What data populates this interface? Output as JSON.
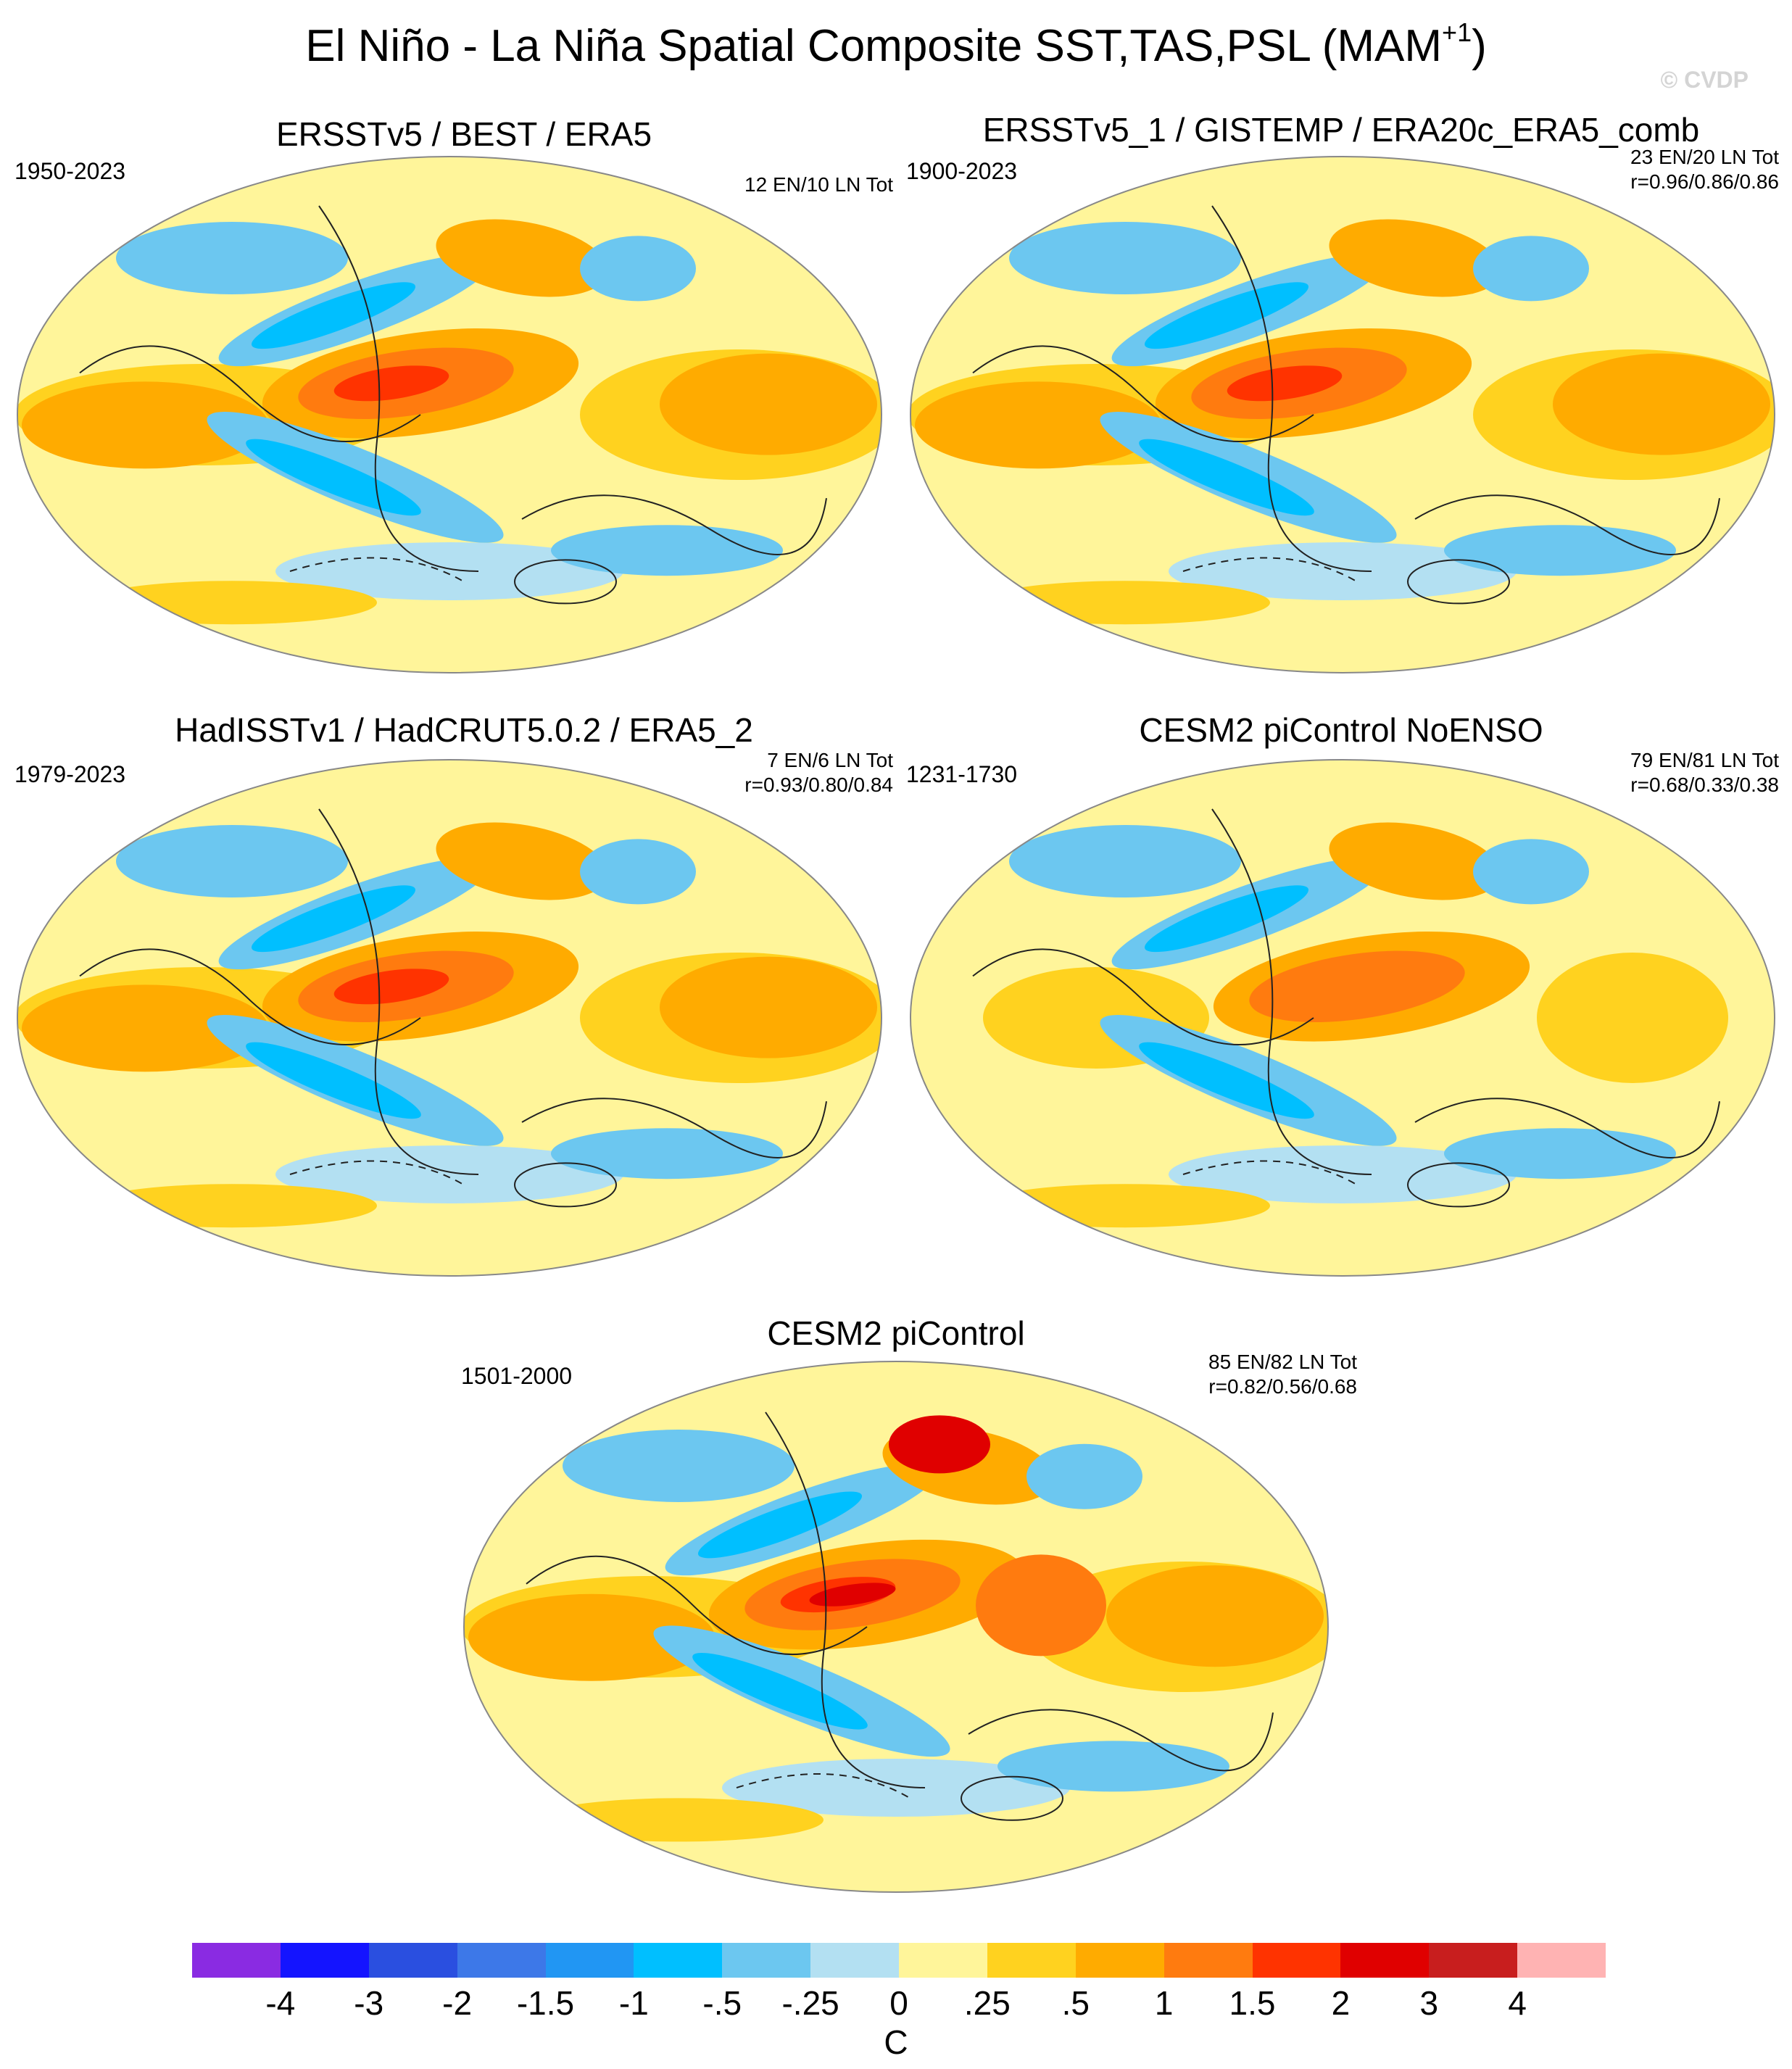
{
  "title": {
    "main": "El Niño - La Niña Spatial Composite SST,TAS,PSL (MAM",
    "superscript": "+1",
    "close": ")"
  },
  "watermark": "© CVDP",
  "panels": [
    {
      "title": "ERSSTv5 / BEST / ERA5",
      "period": "1950-2023",
      "stats": [
        "12 EN/10 LN Tot"
      ]
    },
    {
      "title": "ERSSTv5_1 / GISTEMP / ERA20c_ERA5_comb",
      "period": "1900-2023",
      "stats": [
        "23 EN/20 LN Tot",
        "r=0.96/0.86/0.86"
      ]
    },
    {
      "title": "HadISSTv1 / HadCRUT5.0.2 / ERA5_2",
      "period": "1979-2023",
      "stats": [
        "7 EN/6 LN Tot",
        "r=0.93/0.80/0.84"
      ]
    },
    {
      "title": "CESM2 piControl NoENSO",
      "period": "1231-1730",
      "stats": [
        "79 EN/81 LN Tot",
        "r=0.68/0.33/0.38"
      ]
    },
    {
      "title": "CESM2 piControl",
      "period": "1501-2000",
      "stats": [
        "85 EN/82 LN Tot",
        "r=0.82/0.56/0.68"
      ]
    }
  ],
  "colorbar": {
    "colors": [
      "#8a2be2",
      "#1414ff",
      "#2a4fe0",
      "#3d78e8",
      "#2196f3",
      "#00bfff",
      "#6cc7f0",
      "#b3e0f2",
      "#fff59a",
      "#ffd21f",
      "#ffab00",
      "#ff7b0f",
      "#ff3300",
      "#e00000",
      "#c81e1e",
      "#ffb3b3"
    ],
    "labels": [
      "-4",
      "-3",
      "-2",
      "-1.5",
      "-1",
      "-.5",
      "-.25",
      "0",
      ".25",
      ".5",
      "1",
      "1.5",
      "2",
      "3",
      "4"
    ],
    "unit": "C"
  },
  "map_colors": {
    "background": "#fff59a",
    "warm_light": "#ffd21f",
    "warm": "#ffab00",
    "warm_strong": "#ff7b0f",
    "hot": "#ff3300",
    "very_hot": "#e00000",
    "cool_light": "#b3e0f2",
    "cool": "#6cc7f0",
    "cool_strong": "#00bfff",
    "cold": "#2196f3"
  }
}
